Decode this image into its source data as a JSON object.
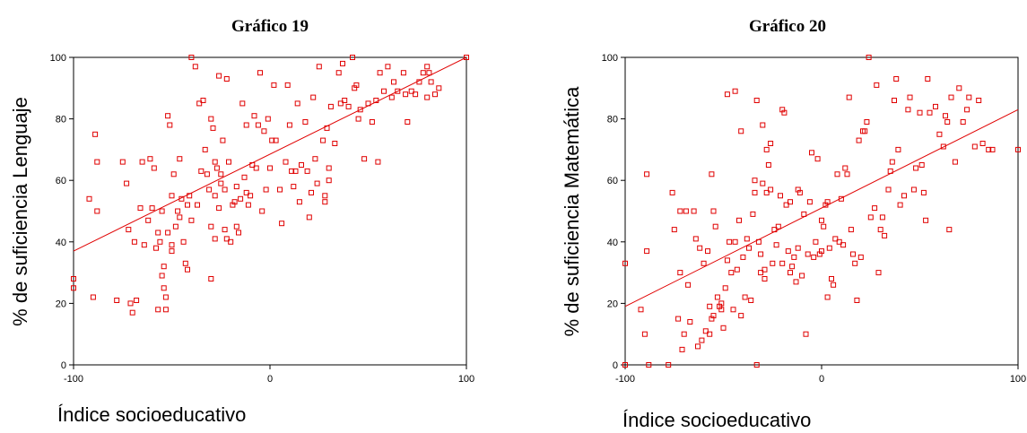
{
  "chart_data": [
    {
      "type": "scatter",
      "title": "Gráfico 19",
      "xlabel": "Índice socioeducativo",
      "ylabel": "% de suficiencia Lenguaje",
      "xlim": [
        -100,
        100
      ],
      "ylim": [
        0,
        100
      ],
      "xticks": [
        "-100",
        "0",
        "100"
      ],
      "yticks": [
        "0",
        "20",
        "40",
        "60",
        "80",
        "100"
      ],
      "color": "#e00000",
      "fit_line": {
        "x": [
          -100,
          100
        ],
        "y": [
          37,
          100
        ]
      },
      "points": [
        [
          -100,
          28
        ],
        [
          -100,
          25
        ],
        [
          -92,
          54
        ],
        [
          -89,
          75
        ],
        [
          -88,
          66
        ],
        [
          -88,
          50
        ],
        [
          -90,
          22
        ],
        [
          -78,
          21
        ],
        [
          -75,
          66
        ],
        [
          -73,
          59
        ],
        [
          -72,
          44
        ],
        [
          -71,
          20
        ],
        [
          -70,
          17
        ],
        [
          -69,
          40
        ],
        [
          -68,
          21
        ],
        [
          -66,
          51
        ],
        [
          -65,
          66
        ],
        [
          -64,
          39
        ],
        [
          -62,
          47
        ],
        [
          -61,
          67
        ],
        [
          -60,
          51
        ],
        [
          -59,
          64
        ],
        [
          -58,
          38
        ],
        [
          -57,
          43
        ],
        [
          -57,
          18
        ],
        [
          -56,
          40
        ],
        [
          -55,
          50
        ],
        [
          -55,
          29
        ],
        [
          -54,
          32
        ],
        [
          -54,
          25
        ],
        [
          -53,
          22
        ],
        [
          -53,
          18
        ],
        [
          -52,
          43
        ],
        [
          -52,
          81
        ],
        [
          -51,
          78
        ],
        [
          -50,
          55
        ],
        [
          -50,
          39
        ],
        [
          -50,
          37
        ],
        [
          -49,
          62
        ],
        [
          -48,
          45
        ],
        [
          -47,
          50
        ],
        [
          -46,
          48
        ],
        [
          -46,
          67
        ],
        [
          -45,
          54
        ],
        [
          -44,
          40
        ],
        [
          -43,
          33
        ],
        [
          -42,
          31
        ],
        [
          -42,
          52
        ],
        [
          -41,
          55
        ],
        [
          -40,
          47
        ],
        [
          -40,
          100
        ],
        [
          -38,
          97
        ],
        [
          -37,
          52
        ],
        [
          -36,
          85
        ],
        [
          -35,
          63
        ],
        [
          -34,
          86
        ],
        [
          -33,
          70
        ],
        [
          -32,
          62
        ],
        [
          -31,
          57
        ],
        [
          -30,
          45
        ],
        [
          -30,
          28
        ],
        [
          -30,
          80
        ],
        [
          -29,
          77
        ],
        [
          -28,
          66
        ],
        [
          -28,
          41
        ],
        [
          -28,
          55
        ],
        [
          -27,
          64
        ],
        [
          -26,
          51
        ],
        [
          -26,
          94
        ],
        [
          -25,
          59
        ],
        [
          -25,
          62
        ],
        [
          -24,
          73
        ],
        [
          -23,
          57
        ],
        [
          -23,
          44
        ],
        [
          -22,
          41
        ],
        [
          -22,
          93
        ],
        [
          -21,
          66
        ],
        [
          -20,
          40
        ],
        [
          -19,
          52
        ],
        [
          -18,
          53
        ],
        [
          -17,
          45
        ],
        [
          -17,
          58
        ],
        [
          -16,
          43
        ],
        [
          -15,
          54
        ],
        [
          -14,
          85
        ],
        [
          -13,
          61
        ],
        [
          -12,
          56
        ],
        [
          -12,
          78
        ],
        [
          -11,
          52
        ],
        [
          -10,
          55
        ],
        [
          -9,
          65
        ],
        [
          -8,
          81
        ],
        [
          -7,
          64
        ],
        [
          -6,
          78
        ],
        [
          -5,
          95
        ],
        [
          -4,
          50
        ],
        [
          -3,
          76
        ],
        [
          -2,
          57
        ],
        [
          -1,
          80
        ],
        [
          0,
          64
        ],
        [
          1,
          73
        ],
        [
          2,
          91
        ],
        [
          3,
          73
        ],
        [
          5,
          57
        ],
        [
          6,
          46
        ],
        [
          8,
          66
        ],
        [
          9,
          91
        ],
        [
          10,
          78
        ],
        [
          11,
          63
        ],
        [
          12,
          58
        ],
        [
          13,
          63
        ],
        [
          14,
          85
        ],
        [
          15,
          53
        ],
        [
          16,
          65
        ],
        [
          18,
          79
        ],
        [
          19,
          63
        ],
        [
          20,
          48
        ],
        [
          21,
          56
        ],
        [
          22,
          87
        ],
        [
          23,
          67
        ],
        [
          24,
          59
        ],
        [
          25,
          97
        ],
        [
          27,
          73
        ],
        [
          28,
          53
        ],
        [
          28,
          55
        ],
        [
          29,
          77
        ],
        [
          30,
          60
        ],
        [
          30,
          64
        ],
        [
          31,
          84
        ],
        [
          33,
          72
        ],
        [
          35,
          95
        ],
        [
          36,
          85
        ],
        [
          37,
          98
        ],
        [
          38,
          86
        ],
        [
          40,
          84
        ],
        [
          42,
          100
        ],
        [
          43,
          90
        ],
        [
          44,
          91
        ],
        [
          45,
          80
        ],
        [
          46,
          83
        ],
        [
          48,
          67
        ],
        [
          50,
          85
        ],
        [
          52,
          79
        ],
        [
          54,
          86
        ],
        [
          55,
          66
        ],
        [
          56,
          95
        ],
        [
          58,
          89
        ],
        [
          60,
          97
        ],
        [
          62,
          87
        ],
        [
          63,
          92
        ],
        [
          65,
          89
        ],
        [
          68,
          95
        ],
        [
          69,
          88
        ],
        [
          70,
          79
        ],
        [
          72,
          89
        ],
        [
          74,
          88
        ],
        [
          76,
          92
        ],
        [
          78,
          95
        ],
        [
          80,
          97
        ],
        [
          80,
          87
        ],
        [
          81,
          95
        ],
        [
          82,
          92
        ],
        [
          84,
          88
        ],
        [
          86,
          90
        ],
        [
          100,
          100
        ]
      ]
    },
    {
      "type": "scatter",
      "title": "Gráfico 20",
      "xlabel": "Índice socioeducativo",
      "ylabel": "% de suficiencia Matemática",
      "xlim": [
        -100,
        100
      ],
      "ylim": [
        0,
        100
      ],
      "xticks": [
        "-100",
        "0",
        "100"
      ],
      "yticks": [
        "0",
        "20",
        "40",
        "60",
        "80",
        "100"
      ],
      "color": "#e00000",
      "fit_line": {
        "x": [
          -100,
          100
        ],
        "y": [
          19,
          83
        ]
      },
      "points": [
        [
          -100,
          33
        ],
        [
          -100,
          0
        ],
        [
          -92,
          18
        ],
        [
          -90,
          10
        ],
        [
          -89,
          62
        ],
        [
          -89,
          37
        ],
        [
          -88,
          0
        ],
        [
          -78,
          0
        ],
        [
          -76,
          56
        ],
        [
          -75,
          44
        ],
        [
          -73,
          15
        ],
        [
          -72,
          30
        ],
        [
          -72,
          50
        ],
        [
          -71,
          5
        ],
        [
          -70,
          10
        ],
        [
          -69,
          50
        ],
        [
          -68,
          26
        ],
        [
          -67,
          14
        ],
        [
          -65,
          50
        ],
        [
          -64,
          41
        ],
        [
          -63,
          6
        ],
        [
          -62,
          38
        ],
        [
          -61,
          8
        ],
        [
          -60,
          33
        ],
        [
          -59,
          11
        ],
        [
          -58,
          37
        ],
        [
          -57,
          19
        ],
        [
          -57,
          10
        ],
        [
          -56,
          62
        ],
        [
          -56,
          15
        ],
        [
          -55,
          16
        ],
        [
          -55,
          50
        ],
        [
          -54,
          45
        ],
        [
          -53,
          22
        ],
        [
          -52,
          19
        ],
        [
          -51,
          20
        ],
        [
          -51,
          18
        ],
        [
          -50,
          12
        ],
        [
          -49,
          25
        ],
        [
          -48,
          34
        ],
        [
          -48,
          88
        ],
        [
          -47,
          40
        ],
        [
          -46,
          30
        ],
        [
          -45,
          18
        ],
        [
          -44,
          89
        ],
        [
          -44,
          40
        ],
        [
          -43,
          31
        ],
        [
          -42,
          47
        ],
        [
          -41,
          16
        ],
        [
          -41,
          76
        ],
        [
          -40,
          35
        ],
        [
          -39,
          22
        ],
        [
          -38,
          41
        ],
        [
          -37,
          38
        ],
        [
          -36,
          21
        ],
        [
          -35,
          49
        ],
        [
          -34,
          56
        ],
        [
          -34,
          60
        ],
        [
          -33,
          86
        ],
        [
          -33,
          0
        ],
        [
          -32,
          40
        ],
        [
          -31,
          36
        ],
        [
          -31,
          30
        ],
        [
          -30,
          78
        ],
        [
          -30,
          59
        ],
        [
          -29,
          31
        ],
        [
          -29,
          28
        ],
        [
          -28,
          70
        ],
        [
          -28,
          56
        ],
        [
          -27,
          65
        ],
        [
          -26,
          72
        ],
        [
          -26,
          57
        ],
        [
          -25,
          33
        ],
        [
          -24,
          44
        ],
        [
          -23,
          39
        ],
        [
          -22,
          45
        ],
        [
          -21,
          55
        ],
        [
          -20,
          83
        ],
        [
          -20,
          33
        ],
        [
          -19,
          82
        ],
        [
          -18,
          52
        ],
        [
          -17,
          37
        ],
        [
          -16,
          53
        ],
        [
          -16,
          30
        ],
        [
          -15,
          32
        ],
        [
          -14,
          35
        ],
        [
          -13,
          27
        ],
        [
          -12,
          38
        ],
        [
          -12,
          57
        ],
        [
          -11,
          56
        ],
        [
          -10,
          29
        ],
        [
          -9,
          49
        ],
        [
          -8,
          10
        ],
        [
          -7,
          36
        ],
        [
          -6,
          53
        ],
        [
          -5,
          69
        ],
        [
          -4,
          35
        ],
        [
          -3,
          40
        ],
        [
          -2,
          67
        ],
        [
          -1,
          36
        ],
        [
          0,
          37
        ],
        [
          0,
          47
        ],
        [
          1,
          45
        ],
        [
          2,
          52
        ],
        [
          3,
          22
        ],
        [
          3,
          53
        ],
        [
          4,
          38
        ],
        [
          5,
          28
        ],
        [
          6,
          26
        ],
        [
          7,
          41
        ],
        [
          8,
          62
        ],
        [
          9,
          40
        ],
        [
          10,
          54
        ],
        [
          11,
          39
        ],
        [
          12,
          64
        ],
        [
          13,
          62
        ],
        [
          14,
          87
        ],
        [
          15,
          44
        ],
        [
          16,
          36
        ],
        [
          17,
          33
        ],
        [
          18,
          21
        ],
        [
          19,
          73
        ],
        [
          20,
          35
        ],
        [
          21,
          76
        ],
        [
          22,
          76
        ],
        [
          23,
          79
        ],
        [
          24,
          100
        ],
        [
          25,
          48
        ],
        [
          27,
          51
        ],
        [
          28,
          91
        ],
        [
          29,
          30
        ],
        [
          30,
          44
        ],
        [
          31,
          48
        ],
        [
          32,
          42
        ],
        [
          34,
          57
        ],
        [
          35,
          63
        ],
        [
          36,
          66
        ],
        [
          37,
          86
        ],
        [
          38,
          93
        ],
        [
          39,
          70
        ],
        [
          40,
          52
        ],
        [
          42,
          55
        ],
        [
          44,
          83
        ],
        [
          45,
          87
        ],
        [
          47,
          57
        ],
        [
          48,
          64
        ],
        [
          50,
          82
        ],
        [
          51,
          65
        ],
        [
          52,
          56
        ],
        [
          53,
          47
        ],
        [
          54,
          93
        ],
        [
          55,
          82
        ],
        [
          58,
          84
        ],
        [
          60,
          75
        ],
        [
          62,
          71
        ],
        [
          63,
          81
        ],
        [
          64,
          79
        ],
        [
          65,
          44
        ],
        [
          66,
          87
        ],
        [
          68,
          66
        ],
        [
          70,
          90
        ],
        [
          72,
          79
        ],
        [
          74,
          83
        ],
        [
          75,
          87
        ],
        [
          78,
          71
        ],
        [
          80,
          86
        ],
        [
          82,
          72
        ],
        [
          85,
          70
        ],
        [
          87,
          70
        ],
        [
          100,
          70
        ]
      ]
    }
  ]
}
